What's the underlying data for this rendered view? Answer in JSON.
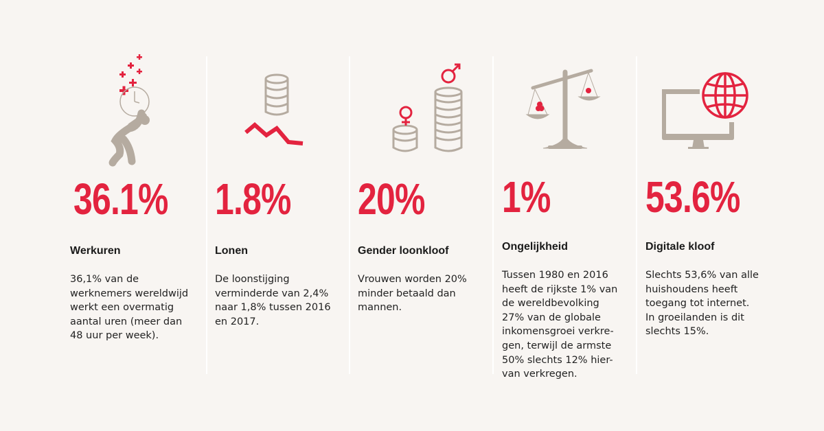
{
  "colors": {
    "background": "#f8f5f2",
    "accent": "#e3233f",
    "icon_gray": "#b5aba0"
  },
  "stats": [
    {
      "icon": "person-carrying-clock-icon",
      "value": "36.1%",
      "title": "Werkuren",
      "lines": [
        "36,1% van de",
        "werknemers wereldwijd",
        "werkt een overmatig",
        "aantal uren (meer dan",
        "48 uur per week)."
      ]
    },
    {
      "icon": "coins-declining-line-icon",
      "value": "1.8%",
      "title": "Lonen",
      "lines": [
        "De loonstijging",
        "verminderde van 2,4%",
        "naar 1,8% tussen 2016",
        "en 2017."
      ]
    },
    {
      "icon": "gender-coin-stacks-icon",
      "value": "20%",
      "title": "Gender loonkloof",
      "lines": [
        "Vrouwen worden 20%",
        "minder betaald dan",
        "mannen."
      ]
    },
    {
      "icon": "balance-scale-icon",
      "value": "1%",
      "title": "Ongelijkheid",
      "lines": [
        "Tussen 1980 en 2016",
        "heeft de rijkste 1% van",
        "de wereldbevolking",
        "27% van de globale",
        "inkomensgroei verkre-",
        "gen, terwijl de armste",
        "50% slechts 12% hier-",
        "van verkregen."
      ]
    },
    {
      "icon": "monitor-globe-icon",
      "value": "53.6%",
      "title": "Digitale kloof",
      "lines": [
        "Slechts 53,6% van alle",
        "huishoudens heeft",
        "toegang tot internet.",
        "In groeilanden is dit",
        "slechts 15%."
      ]
    }
  ]
}
